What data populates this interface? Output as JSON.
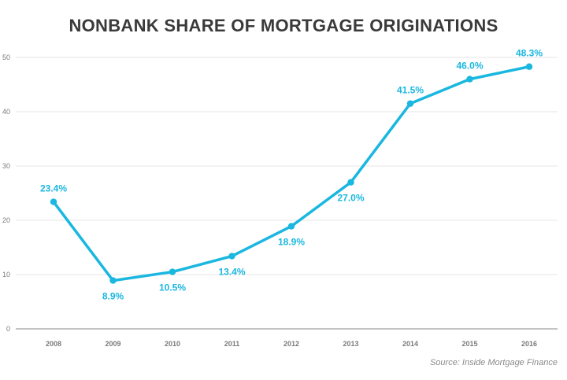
{
  "title": "NONBANK SHARE OF MORTGAGE ORIGINATIONS",
  "source": "Source: Inside Mortgage Finance",
  "colors": {
    "line": "#1ab7e0",
    "grid": "#e4e4e4",
    "axis": "#8a8a8a"
  },
  "chart_data": {
    "type": "line",
    "title": "NONBANK SHARE OF MORTGAGE ORIGINATIONS",
    "xlabel": "",
    "ylabel": "",
    "x": [
      "2008",
      "2009",
      "2010",
      "2011",
      "2012",
      "2013",
      "2014",
      "2015",
      "2016"
    ],
    "series": [
      {
        "values": [
          23.4,
          8.9,
          10.5,
          13.4,
          18.9,
          27.0,
          41.5,
          46.0,
          48.3
        ],
        "labels": [
          "23.4%",
          "8.9%",
          "10.5%",
          "13.4%",
          "18.9%",
          "27.0%",
          "41.5%",
          "46.0%",
          "48.3%"
        ],
        "label_positions": [
          "above",
          "below",
          "below",
          "below",
          "below",
          "below",
          "above",
          "above",
          "above"
        ]
      }
    ],
    "yticks": [
      0,
      10,
      20,
      30,
      40,
      50
    ],
    "ylim": [
      0,
      50
    ],
    "grid": true,
    "legend": "none"
  }
}
